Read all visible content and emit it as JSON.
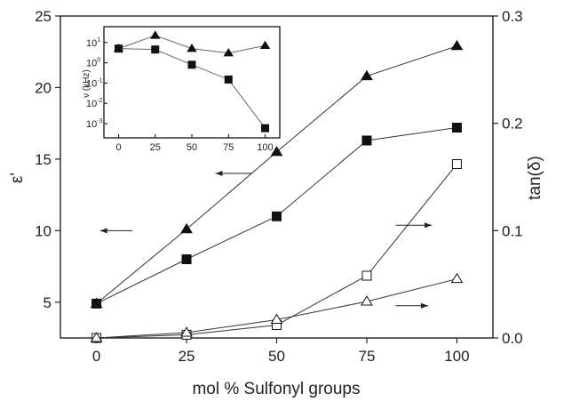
{
  "chart_data": [
    {
      "type": "line",
      "title": "",
      "xlabel": "mol % Sulfonyl groups",
      "ylabel_left": "ε'",
      "ylabel_right": "tan(δ)",
      "x": [
        0,
        25,
        50,
        75,
        100
      ],
      "xlim": [
        -10,
        110
      ],
      "ylim_left": [
        2.5,
        25
      ],
      "ylim_right": [
        0,
        0.3
      ],
      "x_ticks": [
        0,
        25,
        50,
        75,
        100
      ],
      "y_ticks_left": [
        5,
        10,
        15,
        20,
        25
      ],
      "y_ticks_right": [
        0.0,
        0.1,
        0.2,
        0.3
      ],
      "x_tick_labels": [
        "0",
        "25",
        "50",
        "75",
        "100"
      ],
      "y_tick_labels_left": [
        "5",
        "10",
        "15",
        "20",
        "25"
      ],
      "y_tick_labels_right": [
        "0.0",
        "0.1",
        "0.2",
        "0.3"
      ],
      "series": [
        {
          "marker": "filled-triangle",
          "axis": "left",
          "values": [
            4.9,
            10.1,
            15.5,
            20.8,
            22.9
          ]
        },
        {
          "marker": "filled-square",
          "axis": "left",
          "values": [
            4.9,
            8.0,
            11.0,
            16.3,
            17.2
          ]
        },
        {
          "marker": "open-square",
          "axis": "right",
          "values": [
            0.0,
            0.003,
            0.012,
            0.058,
            0.162
          ]
        },
        {
          "marker": "open-triangle",
          "axis": "right",
          "values": [
            0.0,
            0.005,
            0.017,
            0.034,
            0.055
          ]
        }
      ],
      "arrows": [
        {
          "direction": "left",
          "x_from": 10,
          "x_to": 1,
          "y": 10
        },
        {
          "direction": "left",
          "x_from": 43,
          "x_to": 33,
          "y": 14
        },
        {
          "direction": "right",
          "x_from": 83,
          "x_to": 93,
          "y": 0.105,
          "axis": "right"
        },
        {
          "direction": "right",
          "x_from": 83,
          "x_to": 92,
          "y": 0.03,
          "axis": "right"
        }
      ],
      "grid": false
    },
    {
      "type": "line",
      "title": "",
      "xlabel": "",
      "ylabel": "ν (kHz)",
      "yscale": "log",
      "x": [
        0,
        25,
        50,
        75,
        100
      ],
      "xlim": [
        -10,
        110
      ],
      "ylim": [
        0.0002,
        60
      ],
      "x_ticks": [
        0,
        25,
        50,
        75,
        100
      ],
      "x_tick_labels": [
        "0",
        "25",
        "50",
        "75",
        "100"
      ],
      "y_ticks": [
        0.001,
        0.01,
        0.1,
        1,
        10
      ],
      "y_tick_labels": [
        {
          "base": "10",
          "exp": "-3"
        },
        {
          "base": "10",
          "exp": "-2"
        },
        {
          "base": "10",
          "exp": "-1"
        },
        {
          "base": "10",
          "exp": "0"
        },
        {
          "base": "10",
          "exp": "1"
        }
      ],
      "series": [
        {
          "marker": "filled-triangle",
          "values": [
            5.0,
            22.0,
            5.0,
            3.0,
            7.0
          ]
        },
        {
          "marker": "filled-square",
          "values": [
            5.0,
            4.5,
            0.8,
            0.15,
            0.0006
          ]
        }
      ],
      "grid": false
    }
  ]
}
